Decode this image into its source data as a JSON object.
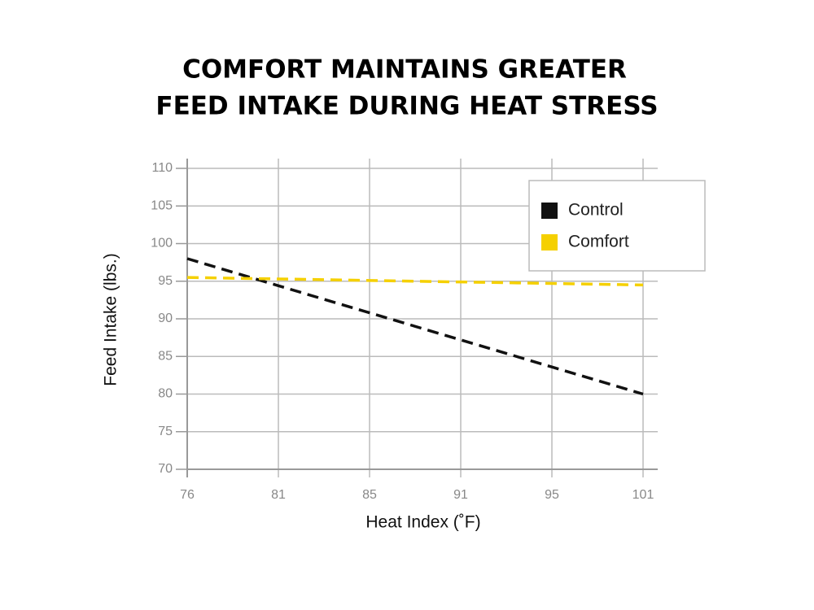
{
  "chart_data": {
    "type": "line",
    "title": [
      "COMFORT MAINTAINS GREATER",
      "FEED INTAKE DURING HEAT STRESS"
    ],
    "x_label": "Heat Index (˚F)",
    "y_label": "Feed Intake (lbs.)",
    "categories": [
      "76",
      "81",
      "85",
      "91",
      "95",
      "101"
    ],
    "series": [
      {
        "name": "Control",
        "color": "#111111",
        "values": [
          98,
          94.4,
          90.8,
          87.2,
          83.6,
          80
        ]
      },
      {
        "name": "Comfort",
        "color": "#f5d000",
        "values": [
          95.5,
          95.3,
          95.1,
          94.9,
          94.7,
          94.5
        ]
      }
    ],
    "ylim": [
      70,
      110
    ],
    "yticks": [
      70,
      75,
      80,
      85,
      90,
      95,
      100,
      105,
      110
    ],
    "grid": true,
    "legend": "upper right"
  }
}
